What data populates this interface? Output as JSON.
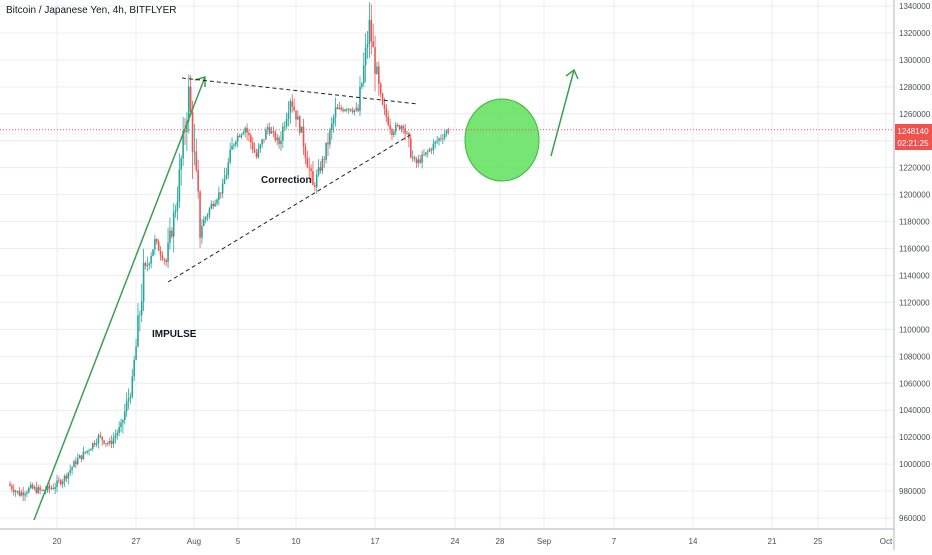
{
  "header": {
    "symbol_title": "Bitcoin / Japanese Yen, 4h, BITFLYER"
  },
  "colors": {
    "up": "#26a69a",
    "down": "#ef5350",
    "impulse_line": "#3d9e52",
    "target_fill": "#5ee05a",
    "target_stroke": "#3cb83a",
    "price_line": "#ef5350",
    "price_badge": "#ef5350",
    "grid": "#e9edf2",
    "axis_text": "#4a4f5a",
    "trend_line": "#222222"
  },
  "annotations": {
    "impulse_label": "IMPULSE",
    "correction_label": "Correction"
  },
  "price_badge": {
    "price": "1248140",
    "countdown": "02:21:25"
  },
  "chart_data": {
    "type": "candlestick",
    "title": "Bitcoin / Japanese Yen, 4h, BITFLYER",
    "ylim": [
      955000,
      1345000
    ],
    "y_ticks": [
      960000,
      980000,
      1000000,
      1020000,
      1040000,
      1060000,
      1080000,
      1100000,
      1120000,
      1140000,
      1160000,
      1180000,
      1200000,
      1220000,
      1240000,
      1260000,
      1280000,
      1300000,
      1320000,
      1340000
    ],
    "x_ticks": [
      "20",
      "27",
      "Aug",
      "5",
      "10",
      "17",
      "24",
      "28",
      "Sep",
      "7",
      "14",
      "21",
      "25",
      "Oct"
    ],
    "last_price": 1248140,
    "grid": true,
    "price_path": [
      {
        "x": "16",
        "y": 985000
      },
      {
        "x": "17",
        "y": 978000
      },
      {
        "x": "18",
        "y": 982000
      },
      {
        "x": "19",
        "y": 980000
      },
      {
        "x": "20",
        "y": 983000
      },
      {
        "x": "21",
        "y": 990000
      },
      {
        "x": "22",
        "y": 1002000
      },
      {
        "x": "23",
        "y": 1010000
      },
      {
        "x": "24",
        "y": 1020000
      },
      {
        "x": "25",
        "y": 1015000
      },
      {
        "x": "26",
        "y": 1028000
      },
      {
        "x": "27",
        "y": 1060000
      },
      {
        "x": "28",
        "y": 1140000
      },
      {
        "x": "29",
        "y": 1165000
      },
      {
        "x": "30",
        "y": 1150000
      },
      {
        "x": "31",
        "y": 1200000
      },
      {
        "x": "Aug",
        "y": 1275000
      },
      {
        "x": "2",
        "y": 1175000
      },
      {
        "x": "3",
        "y": 1192000
      },
      {
        "x": "4",
        "y": 1205000
      },
      {
        "x": "5",
        "y": 1240000
      },
      {
        "x": "6",
        "y": 1250000
      },
      {
        "x": "7",
        "y": 1228000
      },
      {
        "x": "8",
        "y": 1250000
      },
      {
        "x": "9",
        "y": 1238000
      },
      {
        "x": "10",
        "y": 1272000
      },
      {
        "x": "11",
        "y": 1246000
      },
      {
        "x": "12",
        "y": 1205000
      },
      {
        "x": "13",
        "y": 1228000
      },
      {
        "x": "14",
        "y": 1262000
      },
      {
        "x": "15",
        "y": 1265000
      },
      {
        "x": "16",
        "y": 1262000
      },
      {
        "x": "17",
        "y": 1325000
      },
      {
        "x": "18",
        "y": 1268000
      },
      {
        "x": "19",
        "y": 1248000
      },
      {
        "x": "20",
        "y": 1252000
      },
      {
        "x": "21",
        "y": 1222000
      },
      {
        "x": "22",
        "y": 1230000
      },
      {
        "x": "23",
        "y": 1240000
      },
      {
        "x": "24",
        "y": 1248140
      }
    ]
  }
}
